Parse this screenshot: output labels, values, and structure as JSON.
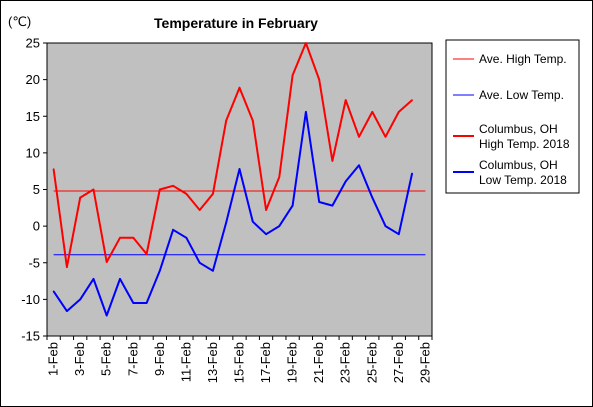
{
  "chart_data": {
    "type": "line",
    "title": "Temperature in February",
    "unit_label": "(℃)",
    "ylim": [
      -15,
      25
    ],
    "y_ticks": [
      25,
      20,
      15,
      10,
      5,
      0,
      -5,
      -10,
      -15
    ],
    "x_labels": [
      "1-Feb",
      "3-Feb",
      "5-Feb",
      "7-Feb",
      "9-Feb",
      "11-Feb",
      "13-Feb",
      "15-Feb",
      "17-Feb",
      "19-Feb",
      "21-Feb",
      "23-Feb",
      "25-Feb",
      "27-Feb",
      "29-Feb"
    ],
    "plot_background": "#c0c0c0",
    "grid": false,
    "legend_position": "right",
    "series": [
      {
        "name": "Ave. High Temp.",
        "color": "#ff0000",
        "style": "thin",
        "values": [
          4.8,
          4.8,
          4.8,
          4.8,
          4.8,
          4.8,
          4.8,
          4.8,
          4.8,
          4.8,
          4.8,
          4.8,
          4.8,
          4.8,
          4.8,
          4.8,
          4.8,
          4.8,
          4.8,
          4.8,
          4.8,
          4.8,
          4.8,
          4.8,
          4.8,
          4.8,
          4.8,
          4.8,
          4.8
        ]
      },
      {
        "name": "Ave. Low Temp.",
        "color": "#0000ff",
        "style": "thin",
        "values": [
          -3.9,
          -3.9,
          -3.9,
          -3.9,
          -3.9,
          -3.9,
          -3.9,
          -3.9,
          -3.9,
          -3.9,
          -3.9,
          -3.9,
          -3.9,
          -3.9,
          -3.9,
          -3.9,
          -3.9,
          -3.9,
          -3.9,
          -3.9,
          -3.9,
          -3.9,
          -3.9,
          -3.9,
          -3.9,
          -3.9,
          -3.9,
          -3.9,
          -3.9
        ]
      },
      {
        "name": "Columbus, OH High Temp. 2018",
        "name_lines": [
          "Columbus, OH",
          "High Temp. 2018"
        ],
        "color": "#ff0000",
        "style": "thick",
        "values": [
          7.8,
          -5.6,
          3.9,
          5.0,
          -4.9,
          -1.6,
          -1.6,
          -3.8,
          5.0,
          5.5,
          4.4,
          2.2,
          4.4,
          14.4,
          18.9,
          14.4,
          2.2,
          6.7,
          20.6,
          25.0,
          20.0,
          8.9,
          17.2,
          12.2,
          15.6,
          12.2,
          15.6,
          17.2
        ]
      },
      {
        "name": "Columbus, OH Low Temp. 2018",
        "name_lines": [
          "Columbus, OH",
          "Low Temp. 2018"
        ],
        "color": "#0000ff",
        "style": "thick",
        "values": [
          -8.9,
          -11.6,
          -10.0,
          -7.2,
          -12.2,
          -7.2,
          -10.5,
          -10.5,
          -6.1,
          -0.5,
          -1.6,
          -5.0,
          -6.1,
          0.5,
          7.8,
          0.6,
          -1.1,
          0.0,
          2.8,
          15.6,
          3.3,
          2.8,
          6.1,
          8.3,
          3.9,
          0.0,
          -1.1,
          7.2
        ]
      }
    ]
  }
}
